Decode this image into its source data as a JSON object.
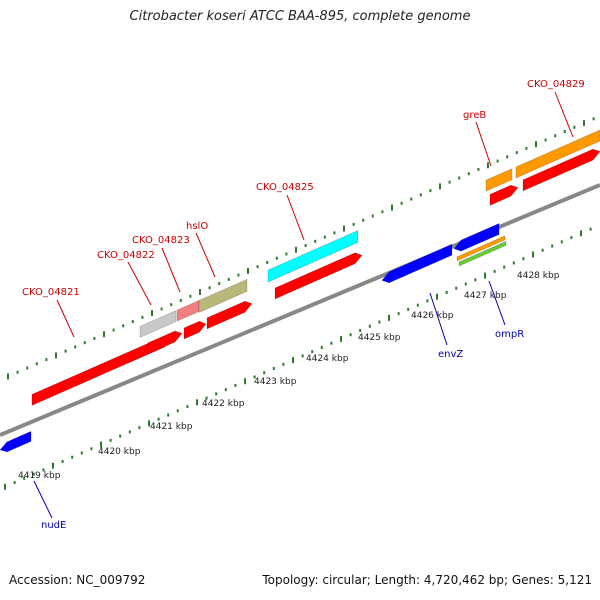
{
  "title": "Citrobacter koseri ATCC BAA-895, complete genome",
  "footer": {
    "accession": "Accession: NC_009792",
    "summary": "Topology: circular; Length: 4,720,462 bp; Genes: 5,121"
  },
  "axis": {
    "tick_labels": [
      "4419 kbp",
      "4420 kbp",
      "4421 kbp",
      "4422 kbp",
      "4423 kbp",
      "4424 kbp",
      "4425 kbp",
      "4426 kbp",
      "4427 kbp",
      "4428 kbp"
    ]
  },
  "genes": [
    {
      "name": "CKO_04821",
      "strand": "forward",
      "color": "#ff0000",
      "label_color": "#cc0000"
    },
    {
      "name": "CKO_04822",
      "strand": "forward",
      "color": "#ff0000",
      "label_color": "#cc0000"
    },
    {
      "name": "CKO_04823",
      "strand": "forward",
      "color": "#ff0000",
      "label_color": "#cc0000"
    },
    {
      "name": "hslO",
      "strand": "forward",
      "color": "#ff0000",
      "label_color": "#cc0000"
    },
    {
      "name": "CKO_04825",
      "strand": "forward",
      "color": "#ff0000",
      "label_color": "#cc0000"
    },
    {
      "name": "greB",
      "strand": "forward",
      "color": "#ff0000",
      "label_color": "#cc0000"
    },
    {
      "name": "CKO_04829",
      "strand": "forward",
      "color": "#ff0000",
      "label_color": "#cc0000"
    },
    {
      "name": "nudE",
      "strand": "reverse",
      "color": "#0000ff",
      "label_color": "#0000aa"
    },
    {
      "name": "envZ",
      "strand": "reverse",
      "color": "#0000ff",
      "label_color": "#0000aa"
    },
    {
      "name": "ompR",
      "strand": "reverse",
      "color": "#0000ff",
      "label_color": "#0000aa"
    }
  ],
  "colors": {
    "backbone": "#888888",
    "forward_cds": "#ff0000",
    "reverse_cds": "#0000ff",
    "tick_green": "#2f7a2f",
    "feature_gray": "#c8c8c8",
    "feature_pink": "#f08080",
    "feature_olive": "#b8b878",
    "feature_cyan": "#00ffff",
    "feature_orange": "#ff9900",
    "feature_green": "#66cc33"
  }
}
